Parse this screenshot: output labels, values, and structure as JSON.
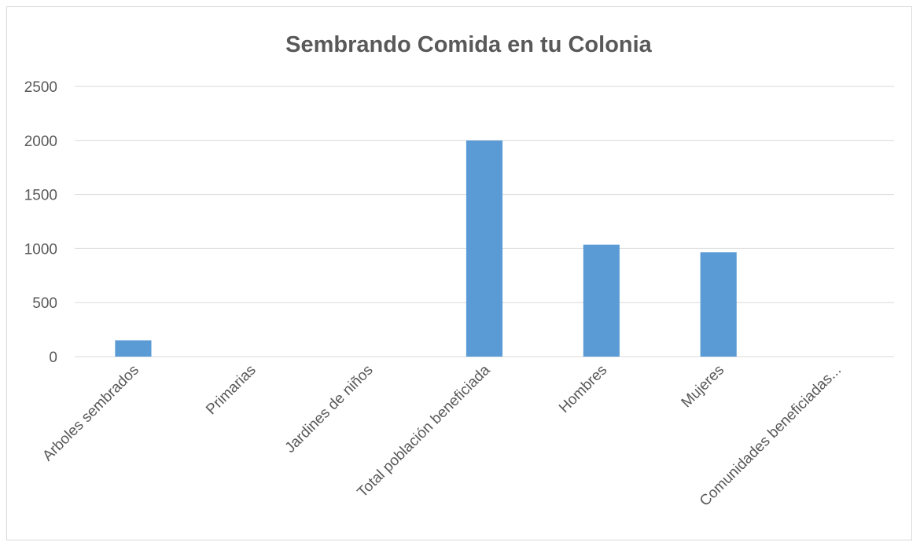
{
  "chart_data": {
    "type": "bar",
    "title": "Sembrando Comida en tu Colonia",
    "xlabel": "",
    "ylabel": "",
    "categories": [
      "Arboles sembrados",
      "Primarias",
      "Jardines de niños",
      "Total población beneficiada",
      "Hombres",
      "Mujeres",
      "Comunidades beneficiadas..."
    ],
    "values": [
      150,
      0,
      0,
      2000,
      1035,
      965,
      0
    ],
    "ylim": [
      0,
      2500
    ],
    "yticks": [
      "0",
      "500",
      "1000",
      "1500",
      "2000",
      "2500"
    ],
    "grid": true,
    "legend": "none",
    "colors": {
      "bar": "#5b9bd5",
      "grid": "#d9d9d9",
      "text": "#595959"
    }
  }
}
